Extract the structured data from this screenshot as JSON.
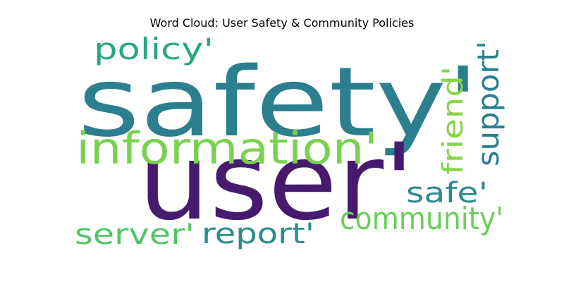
{
  "title": "Word Cloud: User Safety & Community Policies",
  "words": [
    {
      "text": "safety'",
      "color": "#2b7f8e"
    },
    {
      "text": "user'",
      "color": "#461b6d"
    },
    {
      "text": "information'",
      "color": "#7ad151"
    },
    {
      "text": "policy'",
      "color": "#27a882"
    },
    {
      "text": "support'",
      "color": "#2b7f8e"
    },
    {
      "text": "friend'",
      "color": "#86d549"
    },
    {
      "text": "safe'",
      "color": "#2b8a8c"
    },
    {
      "text": "community'",
      "color": "#6ccd5a"
    },
    {
      "text": "server'",
      "color": "#52c569"
    },
    {
      "text": "report'",
      "color": "#2b8c8c"
    }
  ]
}
